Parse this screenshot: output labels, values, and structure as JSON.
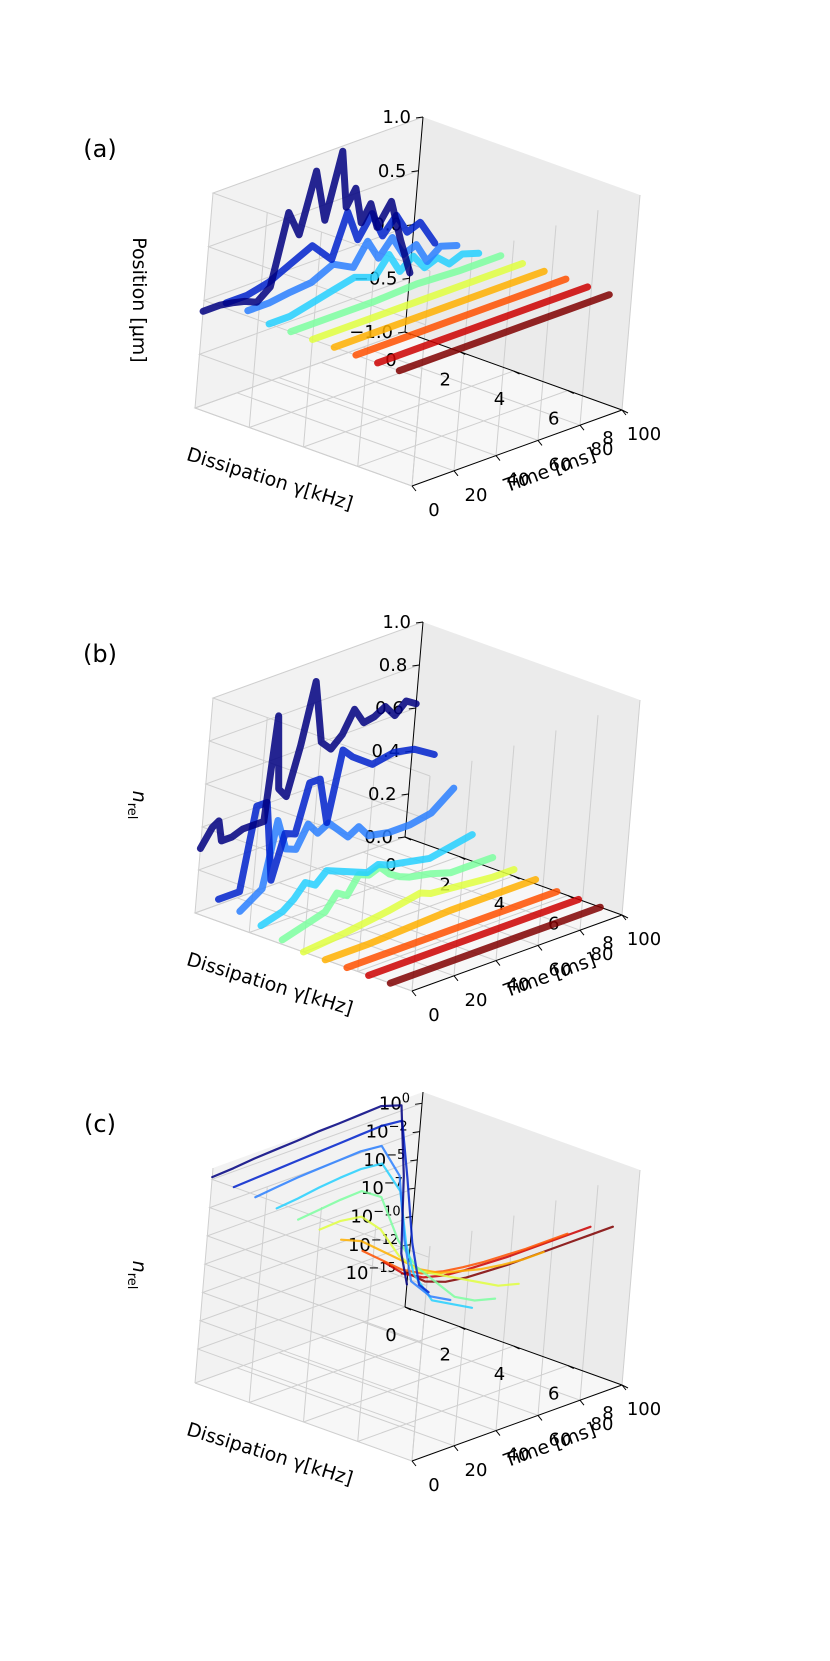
{
  "chart_data": [
    {
      "panel_label": "(a)",
      "type": "line-3d",
      "xlabel": "Dissipation γ[kHz]",
      "ylabel": "Time [ms]",
      "zlabel": "Position [μm]",
      "x_ticks": [
        "0",
        "2",
        "4",
        "6",
        "8"
      ],
      "y_ticks": [
        "0",
        "20",
        "40",
        "60",
        "80",
        "100"
      ],
      "z_ticks": [
        "1.0",
        "0.5",
        "0.0",
        "−0.5",
        "−1.0"
      ],
      "xlim": [
        0,
        8
      ],
      "ylim": [
        0,
        100
      ],
      "zlim": [
        -1.0,
        1.0
      ],
      "scale": "linear",
      "colormap": [
        "#000080",
        "#0022cc",
        "#2a7fff",
        "#25d0ff",
        "#7dffa0",
        "#e0ff40",
        "#ffb000",
        "#ff5000",
        "#cc0000",
        "#800000"
      ],
      "series": [
        {
          "gamma": 0.0,
          "time": [
            0,
            8,
            14,
            20,
            26,
            32,
            38,
            44,
            50,
            56,
            62,
            66,
            70,
            74,
            78,
            82,
            88,
            94,
            100
          ],
          "value": [
            -0.1,
            -0.1,
            -0.12,
            -0.15,
            -0.2,
            -0.1,
            0.55,
            0.3,
            0.85,
            0.35,
            0.95,
            0.4,
            0.55,
            0.2,
            0.35,
            0.1,
            0.3,
            -0.1,
            -0.45
          ]
        },
        {
          "gamma": 0.8,
          "time": [
            0,
            10,
            20,
            30,
            40,
            50,
            56,
            62,
            68,
            74,
            80,
            86,
            92,
            100
          ],
          "value": [
            0.05,
            0.05,
            0.1,
            0.2,
            0.3,
            0.1,
            0.5,
            0.2,
            0.4,
            0.15,
            0.3,
            0.1,
            0.15,
            -0.1
          ]
        },
        {
          "gamma": 1.6,
          "time": [
            0,
            10,
            20,
            30,
            40,
            50,
            56,
            62,
            68,
            74,
            80,
            86,
            92,
            100
          ],
          "value": [
            0.05,
            0.05,
            0.08,
            0.1,
            0.2,
            0.1,
            0.3,
            0.1,
            0.25,
            0.05,
            0.1,
            -0.1,
            0.0,
            -0.05
          ]
        },
        {
          "gamma": 2.4,
          "time": [
            0,
            10,
            20,
            30,
            40,
            50,
            56,
            62,
            68,
            74,
            80,
            86,
            92,
            100
          ],
          "value": [
            0.0,
            0.0,
            0.05,
            0.1,
            0.15,
            0.08,
            0.25,
            0.05,
            0.15,
            0.0,
            0.05,
            -0.05,
            0.0,
            -0.05
          ]
        },
        {
          "gamma": 3.2,
          "time": [
            0,
            20,
            40,
            60,
            80,
            100
          ],
          "value": [
            0.0,
            0.0,
            0.0,
            0.02,
            0.0,
            0.0
          ]
        },
        {
          "gamma": 4.0,
          "time": [
            0,
            20,
            40,
            60,
            80,
            100
          ],
          "value": [
            0.0,
            0.0,
            0.0,
            0.0,
            0.0,
            0.0
          ]
        },
        {
          "gamma": 4.8,
          "time": [
            0,
            20,
            40,
            60,
            80,
            100
          ],
          "value": [
            0.0,
            0.0,
            0.0,
            0.0,
            0.0,
            0.0
          ]
        },
        {
          "gamma": 5.6,
          "time": [
            0,
            20,
            40,
            60,
            80,
            100
          ],
          "value": [
            0.0,
            0.0,
            0.0,
            0.0,
            0.0,
            0.0
          ]
        },
        {
          "gamma": 6.4,
          "time": [
            0,
            20,
            40,
            60,
            80,
            100
          ],
          "value": [
            0.0,
            0.0,
            0.0,
            0.0,
            0.0,
            0.0
          ]
        },
        {
          "gamma": 7.2,
          "time": [
            0,
            20,
            40,
            60,
            80,
            100
          ],
          "value": [
            0.0,
            0.0,
            0.0,
            0.0,
            0.0,
            0.0
          ]
        }
      ]
    },
    {
      "panel_label": "(b)",
      "type": "line-3d",
      "xlabel": "Dissipation γ[kHz]",
      "ylabel": "Time [ms]",
      "zlabel": "n_rel",
      "x_ticks": [
        "0",
        "2",
        "4",
        "6",
        "8"
      ],
      "y_ticks": [
        "0",
        "20",
        "40",
        "60",
        "80",
        "100"
      ],
      "z_ticks": [
        "1.0",
        "0.8",
        "0.6",
        "0.4",
        "0.2",
        "0.0"
      ],
      "xlim": [
        0,
        8
      ],
      "ylim": [
        0,
        100
      ],
      "zlim": [
        0,
        1.0
      ],
      "scale": "linear",
      "series": [
        {
          "gamma": 0.0,
          "time": [
            0,
            5,
            8,
            10,
            15,
            20,
            25,
            30,
            33,
            36,
            40,
            45,
            50,
            55,
            60,
            65,
            70,
            75,
            80,
            85,
            90,
            95,
            100
          ],
          "value": [
            0.3,
            0.38,
            0.4,
            0.3,
            0.3,
            0.32,
            0.32,
            0.32,
            0.8,
            0.45,
            0.4,
            0.62,
            0.9,
            0.6,
            0.55,
            0.6,
            0.7,
            0.62,
            0.63,
            0.66,
            0.6,
            0.65,
            0.62
          ]
        },
        {
          "gamma": 0.8,
          "time": [
            0,
            10,
            15,
            20,
            25,
            30,
            35,
            40,
            45,
            50,
            55,
            60,
            70,
            80,
            90,
            100
          ],
          "value": [
            0.1,
            0.1,
            0.48,
            0.48,
            0.1,
            0.3,
            0.28,
            0.5,
            0.5,
            0.28,
            0.6,
            0.55,
            0.48,
            0.5,
            0.48,
            0.42
          ]
        },
        {
          "gamma": 1.6,
          "time": [
            0,
            10,
            15,
            20,
            25,
            30,
            35,
            40,
            45,
            50,
            55,
            60,
            70,
            80,
            90,
            100
          ],
          "value": [
            0.08,
            0.15,
            0.45,
            0.3,
            0.28,
            0.38,
            0.32,
            0.35,
            0.3,
            0.25,
            0.28,
            0.22,
            0.2,
            0.2,
            0.22,
            0.3
          ]
        },
        {
          "gamma": 2.4,
          "time": [
            0,
            10,
            15,
            20,
            25,
            30,
            35,
            40,
            45,
            50,
            55,
            60,
            70,
            80,
            90,
            100
          ],
          "value": [
            0.05,
            0.08,
            0.12,
            0.18,
            0.15,
            0.2,
            0.18,
            0.16,
            0.14,
            0.12,
            0.14,
            0.12,
            0.1,
            0.08,
            0.1,
            0.12
          ]
        },
        {
          "gamma": 3.2,
          "time": [
            0,
            10,
            20,
            25,
            30,
            35,
            40,
            45,
            50,
            55,
            60,
            70,
            80,
            90,
            100
          ],
          "value": [
            0.02,
            0.05,
            0.08,
            0.15,
            0.12,
            0.2,
            0.18,
            0.2,
            0.15,
            0.12,
            0.1,
            0.08,
            0.05,
            0.05,
            0.05
          ]
        },
        {
          "gamma": 4.0,
          "time": [
            0,
            20,
            40,
            55,
            60,
            70,
            80,
            90,
            100
          ],
          "value": [
            0.0,
            0.02,
            0.05,
            0.08,
            0.06,
            0.05,
            0.04,
            0.03,
            0.03
          ]
        },
        {
          "gamma": 4.8,
          "time": [
            0,
            20,
            40,
            60,
            80,
            100
          ],
          "value": [
            0.0,
            0.0,
            0.01,
            0.02,
            0.02,
            0.02
          ]
        },
        {
          "gamma": 5.6,
          "time": [
            0,
            20,
            40,
            60,
            80,
            100
          ],
          "value": [
            0.0,
            0.0,
            0.0,
            0.0,
            0.0,
            0.0
          ]
        },
        {
          "gamma": 6.4,
          "time": [
            0,
            20,
            40,
            60,
            80,
            100
          ],
          "value": [
            0.0,
            0.0,
            0.0,
            0.0,
            0.0,
            0.0
          ]
        },
        {
          "gamma": 7.2,
          "time": [
            0,
            20,
            40,
            60,
            80,
            100
          ],
          "value": [
            0.0,
            0.0,
            0.0,
            0.0,
            0.0,
            0.0
          ]
        }
      ]
    },
    {
      "panel_label": "(c)",
      "type": "line-3d",
      "xlabel": "Dissipation γ[kHz]",
      "ylabel": "Time [ms]",
      "zlabel": "n_rel",
      "x_ticks": [
        "0",
        "2",
        "4",
        "6",
        "8"
      ],
      "y_ticks": [
        "0",
        "20",
        "40",
        "60",
        "80",
        "100"
      ],
      "z_ticks": [
        "10^0",
        "10^-2",
        "10^-5",
        "10^-7",
        "10^-10",
        "10^-12",
        "10^-15"
      ],
      "z_tick_values": [
        0,
        -2.5,
        -5,
        -7.5,
        -10,
        -12.5,
        -15
      ],
      "xlim": [
        0,
        8
      ],
      "ylim": [
        0,
        100
      ],
      "zlim": [
        -18,
        1
      ],
      "scale": "log",
      "series": [
        {
          "gamma": 0.0,
          "time": [
            0,
            10,
            20,
            30,
            40,
            50,
            60,
            70,
            80,
            90,
            94,
            96,
            100
          ],
          "log10_value": [
            0.2,
            0.3,
            0.5,
            0.6,
            0.7,
            0.85,
            0.9,
            1.0,
            1.1,
            0.5,
            -6,
            -13,
            -16
          ]
        },
        {
          "gamma": 0.8,
          "time": [
            0,
            10,
            20,
            30,
            40,
            50,
            60,
            70,
            80,
            85,
            90,
            95,
            100
          ],
          "log10_value": [
            0.0,
            0.1,
            0.2,
            0.3,
            0.4,
            0.5,
            0.6,
            0.7,
            0.5,
            -5,
            -11,
            -15,
            -16
          ]
        },
        {
          "gamma": 1.6,
          "time": [
            0,
            10,
            20,
            30,
            40,
            50,
            60,
            70,
            75,
            80,
            90,
            100
          ],
          "log10_value": [
            -0.2,
            0.0,
            0.2,
            0.3,
            0.4,
            0.5,
            0.3,
            -3,
            -9,
            -13,
            -15,
            -16
          ]
        },
        {
          "gamma": 2.4,
          "time": [
            0,
            10,
            20,
            30,
            40,
            50,
            60,
            65,
            70,
            80,
            90,
            100
          ],
          "log10_value": [
            -0.5,
            -0.3,
            0.0,
            0.2,
            0.3,
            0.1,
            -3,
            -8,
            -11,
            -14,
            -15,
            -16
          ]
        },
        {
          "gamma": 3.2,
          "time": [
            0,
            10,
            20,
            30,
            40,
            50,
            60,
            70,
            80,
            90,
            100
          ],
          "log10_value": [
            -0.8,
            -0.6,
            -0.4,
            -0.3,
            -1.5,
            -6,
            -9,
            -11,
            -13,
            -14,
            -14.5
          ]
        },
        {
          "gamma": 4.0,
          "time": [
            0,
            10,
            20,
            30,
            40,
            50,
            60,
            70,
            80,
            90,
            100
          ],
          "log10_value": [
            -1.0,
            -0.9,
            -1.2,
            -3,
            -6,
            -8,
            -9,
            -10,
            -11,
            -12,
            -12.5
          ]
        },
        {
          "gamma": 4.8,
          "time": [
            0,
            10,
            20,
            30,
            40,
            50,
            60,
            70,
            80,
            90,
            100
          ],
          "log10_value": [
            -1.2,
            -2,
            -3.5,
            -5,
            -6.5,
            -7.5,
            -8,
            -8.5,
            -8.8,
            -9,
            -9
          ]
        },
        {
          "gamma": 5.6,
          "time": [
            0,
            10,
            20,
            30,
            40,
            50,
            60,
            70,
            80,
            90,
            100
          ],
          "log10_value": [
            -1.5,
            -3,
            -4.5,
            -5.5,
            -6,
            -6.3,
            -6.5,
            -6.6,
            -6.7,
            -6.7,
            -6.7
          ]
        },
        {
          "gamma": 6.4,
          "time": [
            0,
            10,
            20,
            30,
            40,
            50,
            60,
            70,
            80,
            90,
            100
          ],
          "log10_value": [
            -1.8,
            -3.5,
            -4.5,
            -5,
            -5.2,
            -5.3,
            -5.4,
            -5.4,
            -5.4,
            -5.4,
            -5.4
          ]
        },
        {
          "gamma": 7.2,
          "time": [
            0,
            10,
            20,
            30,
            40,
            50,
            60,
            70,
            80,
            90,
            100
          ],
          "log10_value": [
            -2.0,
            -3.5,
            -4.2,
            -4.5,
            -4.6,
            -4.7,
            -4.7,
            -4.7,
            -4.7,
            -4.7,
            -4.7
          ]
        }
      ]
    }
  ]
}
